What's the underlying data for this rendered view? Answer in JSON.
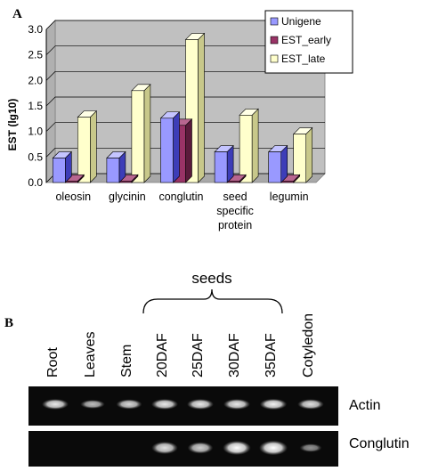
{
  "panel_a": {
    "label": "A",
    "chart_data": {
      "type": "bar",
      "ylabel": "EST (lg10)",
      "xlabel": "",
      "ylim": [
        0,
        3
      ],
      "yticks": [
        "0.0",
        "0.5",
        "1.0",
        "1.5",
        "2.0",
        "2.5",
        "3.0"
      ],
      "grid": true,
      "legend_position": "top-right",
      "categories": [
        "oleosin",
        "glycinin",
        "conglutin",
        "seed specific protein",
        "legumin"
      ],
      "category_label_lines": [
        [
          "oleosin"
        ],
        [
          "glycinin"
        ],
        [
          "conglutin"
        ],
        [
          "seed",
          "specific",
          "protein"
        ],
        [
          "legumin"
        ]
      ],
      "series": [
        {
          "name": "Unigene",
          "values": [
            0.48,
            0.48,
            1.26,
            0.6,
            0.6
          ]
        },
        {
          "name": "EST_early",
          "values": [
            0.03,
            0.03,
            1.12,
            0.03,
            0.03
          ]
        },
        {
          "name": "EST_late",
          "values": [
            1.28,
            1.8,
            2.8,
            1.32,
            0.95
          ]
        }
      ],
      "colors": {
        "Unigene": {
          "front": "#9999ff",
          "side": "#3d3db8",
          "top": "#c4c4ff"
        },
        "EST_early": {
          "front": "#993366",
          "side": "#5a1a3b",
          "top": "#b86690"
        },
        "EST_late": {
          "front": "#ffffcc",
          "side": "#c8c88a",
          "top": "#ffffe6"
        },
        "wall": "#c0c0c0",
        "floor": "#a8a8a8"
      }
    }
  },
  "panel_b": {
    "label": "B",
    "bracket_label": "seeds",
    "lanes": [
      "Root",
      "Leaves",
      "Stem",
      "20DAF",
      "25DAF",
      "30DAF",
      "35DAF",
      "Cotyledon"
    ],
    "gels": [
      {
        "label": "Actin",
        "intensity": [
          0.8,
          0.55,
          0.7,
          0.8,
          0.8,
          0.8,
          0.85,
          0.75
        ]
      },
      {
        "label": "Conglutin",
        "intensity": [
          0,
          0,
          0,
          0.75,
          0.65,
          0.95,
          1.0,
          0.3
        ]
      }
    ]
  }
}
